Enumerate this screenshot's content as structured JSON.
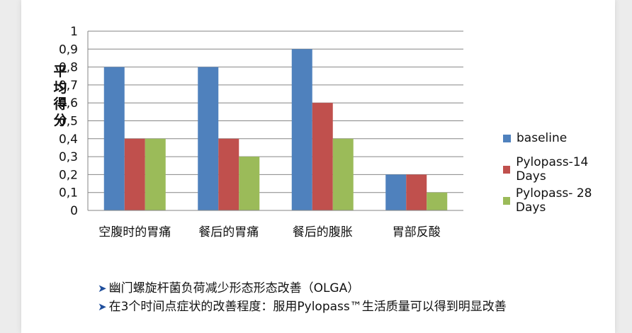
{
  "chart_data": {
    "type": "bar",
    "title": "",
    "xlabel": "",
    "ylabel": "平均得分",
    "ylim": [
      0,
      1
    ],
    "yticks": [
      "0",
      "0,1",
      "0,2",
      "0,3",
      "0,4",
      "0,5",
      "0,6",
      "0,7",
      "0,8",
      "0,9",
      "1"
    ],
    "grid": true,
    "legend_position": "right",
    "categories": [
      "空腹时的胃痛",
      "餐后的胃痛",
      "餐后的腹胀",
      "胃部反酸"
    ],
    "series": [
      {
        "name": "baseline",
        "color": "#4f81bd",
        "values": [
          0.8,
          0.8,
          0.9,
          0.2
        ]
      },
      {
        "name": "Pylopass-14 Days",
        "color": "#c0504d",
        "values": [
          0.4,
          0.4,
          0.6,
          0.2
        ]
      },
      {
        "name": "Pylopass- 28 Days",
        "color": "#9bbb59",
        "values": [
          0.4,
          0.3,
          0.4,
          0.1
        ]
      }
    ]
  },
  "notes": [
    {
      "text": "幽门螺旋杆菌负荷减少形态形态改善（OLGA）"
    },
    {
      "text": "在3个时间点症状的改善程度：服用Pylopass™生活质量可以得到明显改善"
    }
  ]
}
